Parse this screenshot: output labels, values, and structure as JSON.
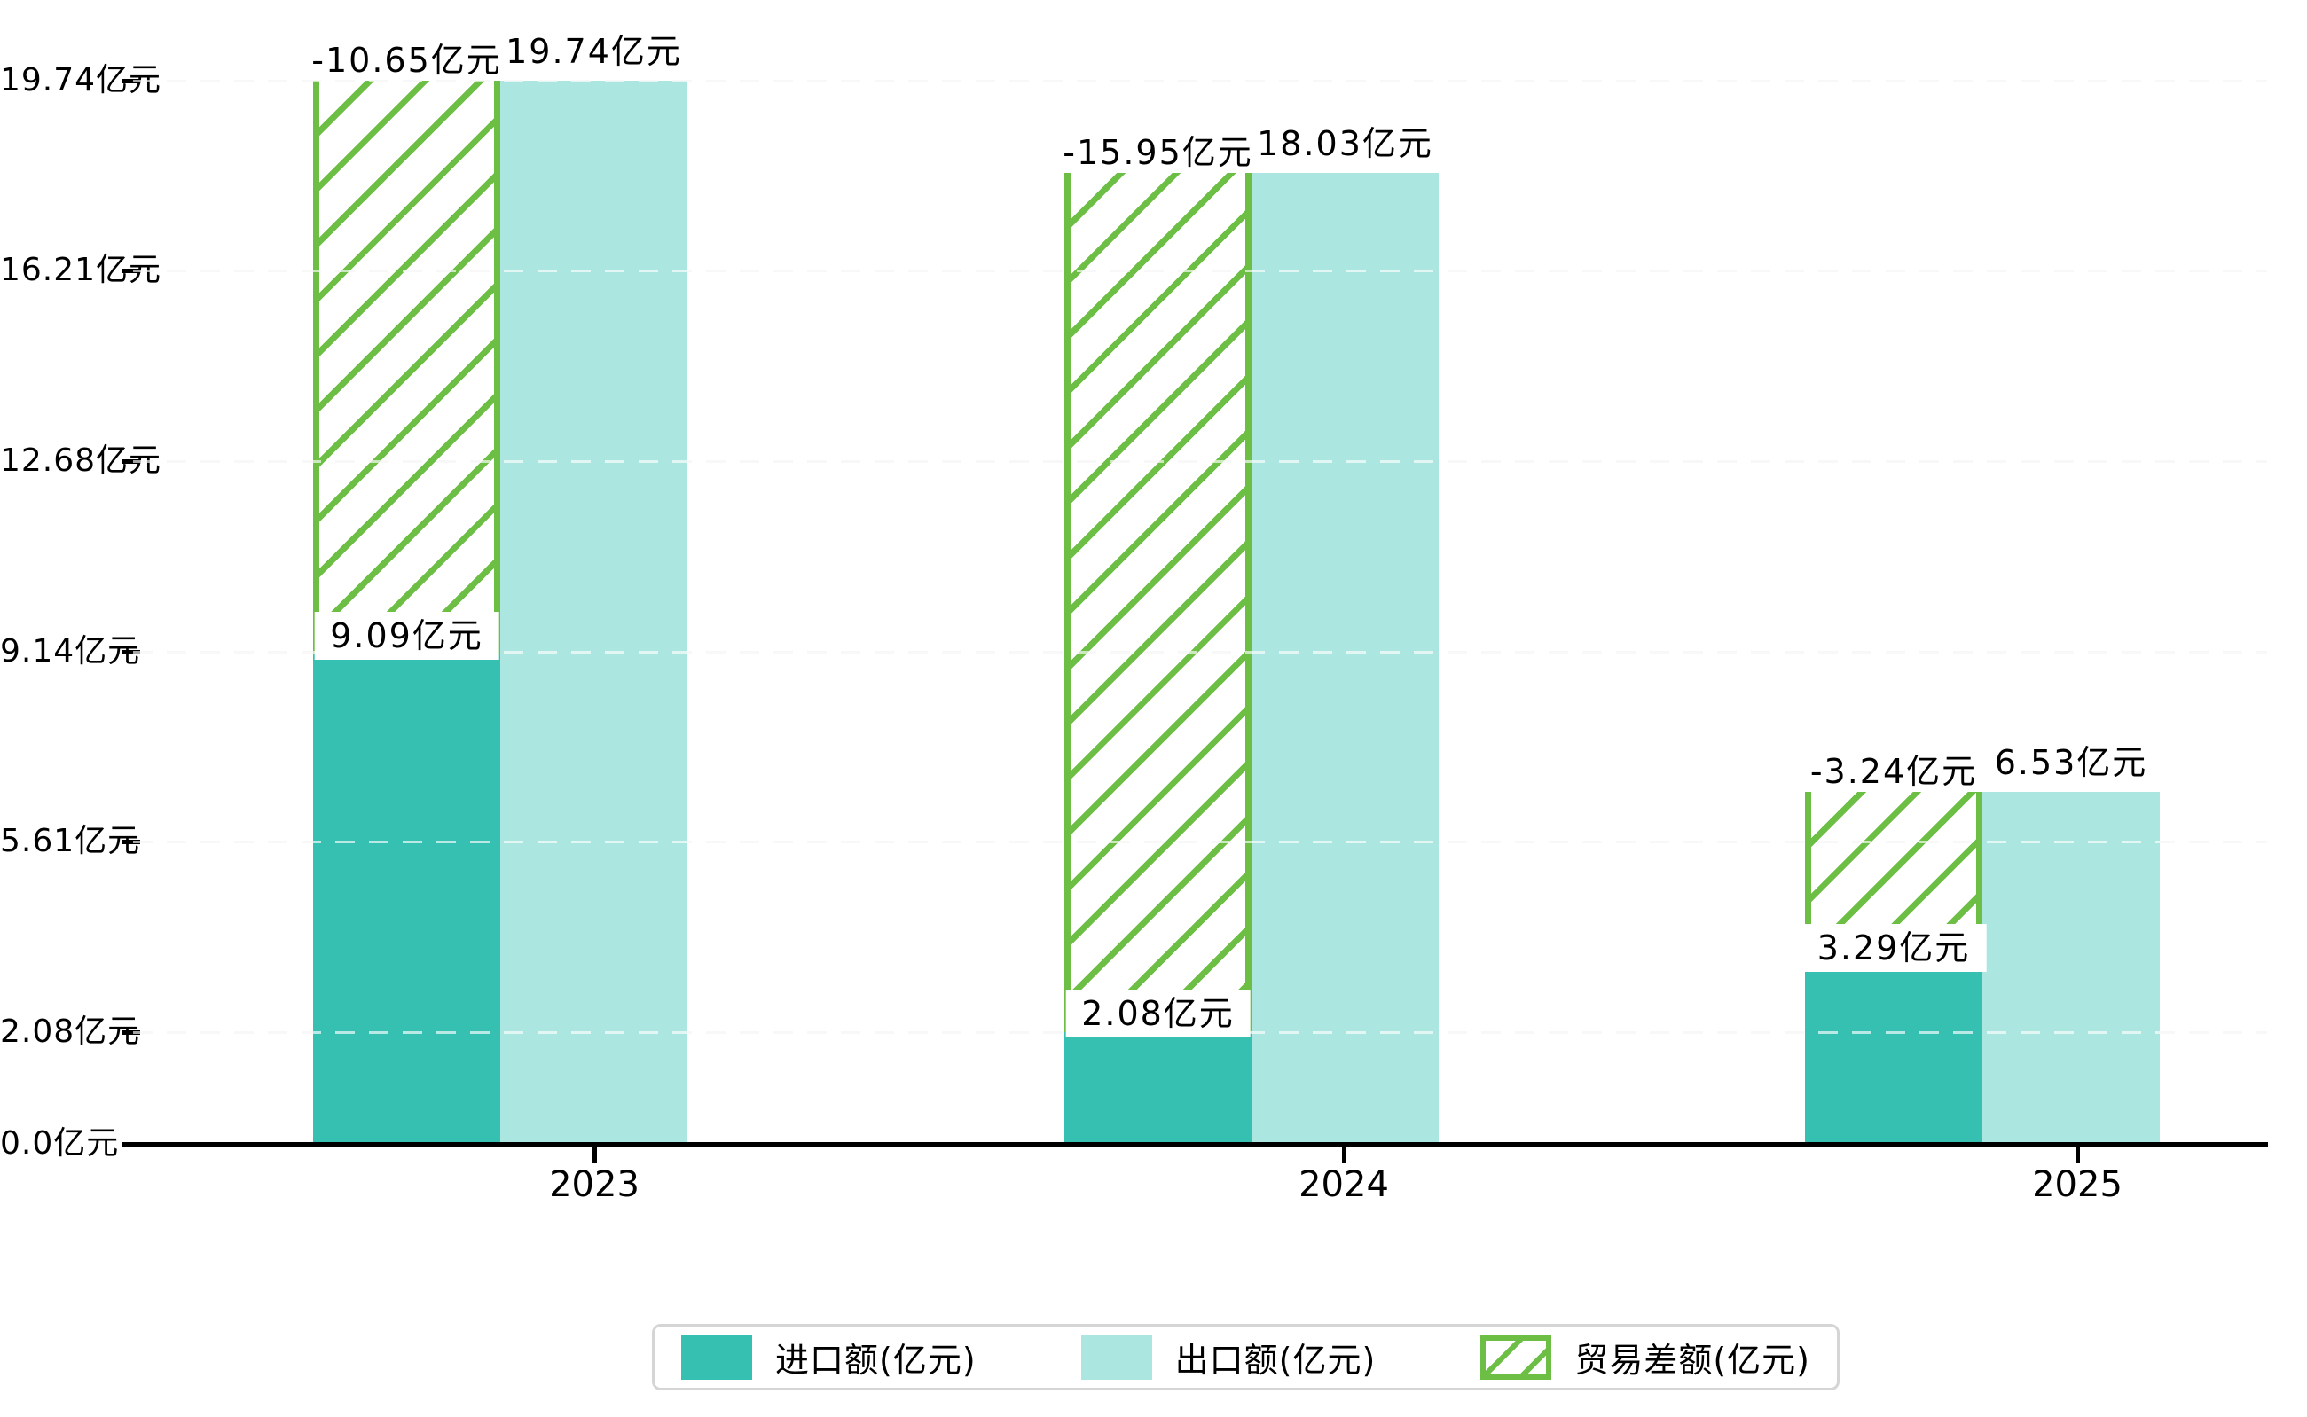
{
  "chart_data": {
    "type": "bar",
    "categories": [
      "2023",
      "2024",
      "2025"
    ],
    "series": [
      {
        "name": "进口额(亿元)",
        "role": "import",
        "color": "#35c0b2",
        "values": [
          9.09,
          2.08,
          3.29
        ],
        "labels": [
          "9.09亿元",
          "2.08亿元",
          "3.29亿元"
        ]
      },
      {
        "name": "出口额(亿元)",
        "role": "export",
        "color": "#abe7e0",
        "values": [
          19.74,
          18.03,
          6.53
        ],
        "labels": [
          "19.74亿元",
          "18.03亿元",
          "6.53亿元"
        ]
      },
      {
        "name": "贸易差额(亿元)",
        "role": "trade-balance",
        "style": "hatch",
        "color": "#6cbf44",
        "values": [
          -10.65,
          -15.95,
          -3.24
        ],
        "labels": [
          "-10.65亿元",
          "-15.95亿元",
          "-3.24亿元"
        ]
      }
    ],
    "y_ticks": [
      {
        "value": 0,
        "label": "0.0亿元"
      },
      {
        "value": 2.08,
        "label": "2.08亿元"
      },
      {
        "value": 5.61,
        "label": "5.61亿元"
      },
      {
        "value": 9.14,
        "label": "9.14亿元"
      },
      {
        "value": 12.68,
        "label": "12.68亿元"
      },
      {
        "value": 16.21,
        "label": "16.21亿元"
      },
      {
        "value": 19.74,
        "label": "19.74亿元"
      }
    ],
    "ylim": [
      0,
      21.3
    ],
    "grid": "dashed",
    "legend_position": "bottom",
    "title": "",
    "xlabel": "",
    "ylabel": ""
  },
  "colors": {
    "import_bar": "#35c0b2",
    "export_bar": "#abe7e0",
    "hatch_green": "#6cbf44",
    "gridline": "#ececec",
    "axis": "#000000",
    "legend_border": "#d5d5d5",
    "background": "#ffffff",
    "text": "#000000"
  }
}
